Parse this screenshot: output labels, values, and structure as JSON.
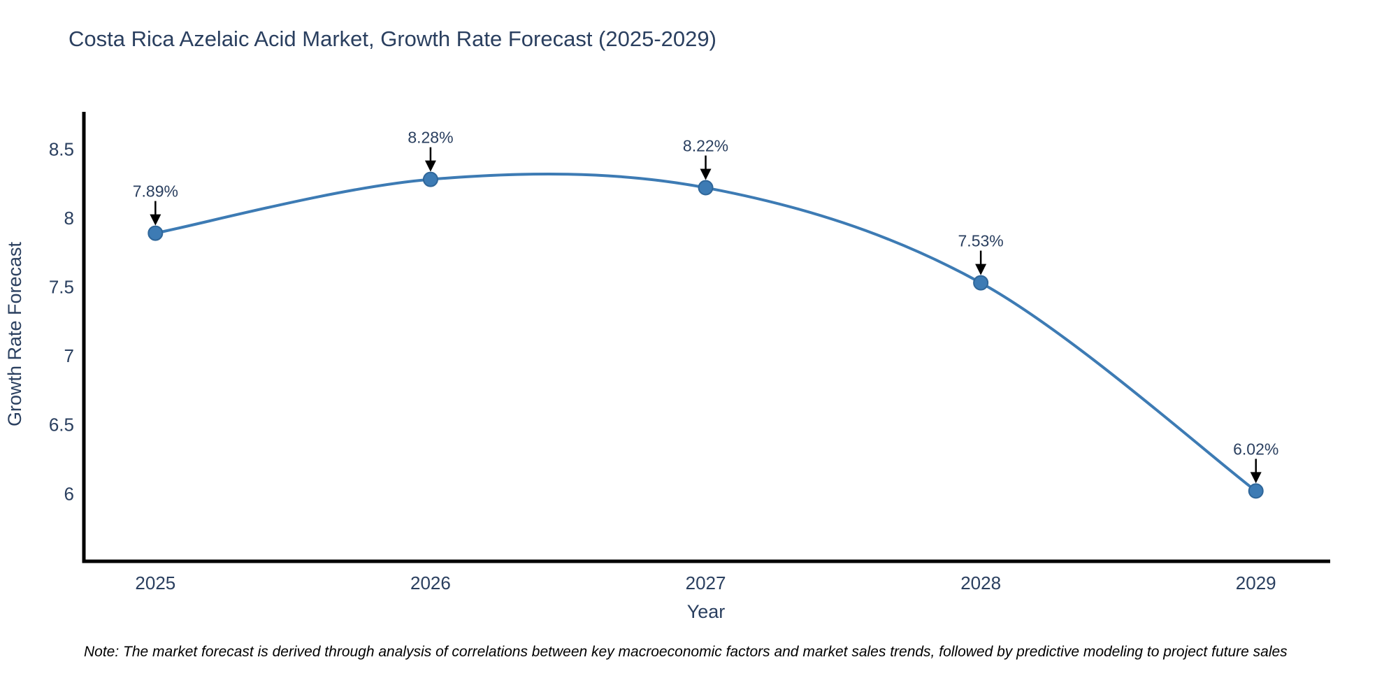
{
  "note": "Note: The market forecast is derived through analysis of correlations between key macroeconomic factors and market sales trends, followed by predictive modeling to project future sales",
  "chart_data": {
    "type": "line",
    "title": "Costa Rica Azelaic Acid Market, Growth Rate Forecast (2025-2029)",
    "xlabel": "Year",
    "ylabel": "Growth Rate Forecast",
    "categories": [
      2025,
      2026,
      2027,
      2028,
      2029
    ],
    "series": [
      {
        "name": "Growth Rate Forecast",
        "values": [
          7.89,
          8.28,
          8.22,
          7.53,
          6.02
        ],
        "point_labels": [
          "7.89%",
          "8.28%",
          "8.22%",
          "7.53%",
          "6.02%"
        ]
      }
    ],
    "y_ticks": [
      6,
      6.5,
      7,
      7.5,
      8,
      8.5
    ],
    "xlim": [
      2024.74,
      2029.27
    ],
    "ylim": [
      5.51,
      8.77
    ],
    "line_shape": "spline",
    "grid": false,
    "legend": "none",
    "colors": {
      "line": "#3d7bb4",
      "marker_fill": "#3d7bb4",
      "marker_edge": "#2f6699",
      "axis": "#000000",
      "text": "#2a3f5f",
      "annotation_arrow": "#000000",
      "note_text": "#000000"
    }
  }
}
